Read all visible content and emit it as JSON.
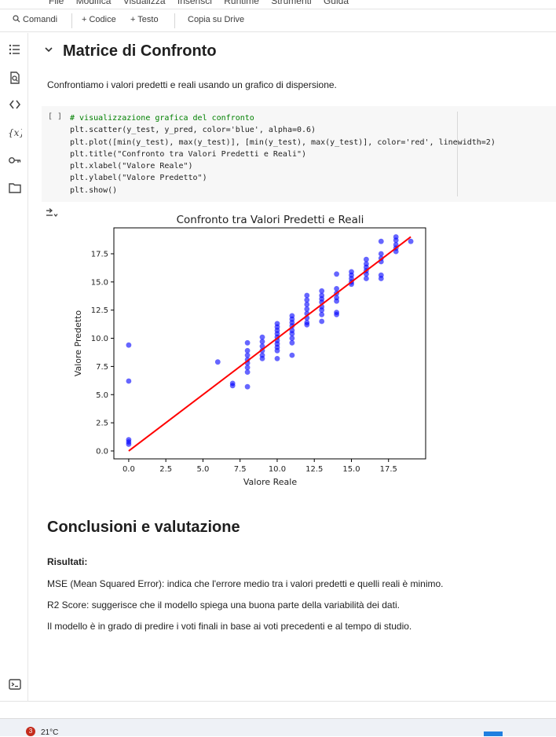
{
  "menu": {
    "items": [
      "File",
      "Modifica",
      "Visualizza",
      "Inserisci",
      "Runtime",
      "Strumenti",
      "Guida"
    ]
  },
  "toolbar": {
    "commands_label": "Comandi",
    "add_code_label": "+ Codice",
    "add_text_label": "+ Testo",
    "copy_drive_label": "Copia su Drive"
  },
  "section": {
    "title": "Matrice di Confronto",
    "intro": "Confrontiamo i valori predetti e reali usando un grafico di dispersione."
  },
  "code_cell": {
    "run_label": "[ ]",
    "lines": [
      "# visualizzazione grafica del confronto",
      "plt.scatter(y_test, y_pred, color='blue', alpha=0.6)",
      "plt.plot([min(y_test), max(y_test)], [min(y_test), max(y_test)], color='red', linewidth=2)",
      "plt.title(\"Confronto tra Valori Predetti e Reali\")",
      "plt.xlabel(\"Valore Reale\")",
      "plt.ylabel(\"Valore Predetto\")",
      "plt.show()"
    ]
  },
  "chart_data": {
    "type": "scatter",
    "title": "Confronto tra Valori Predetti e Reali",
    "xlabel": "Valore Reale",
    "ylabel": "Valore Predetto",
    "xlim": [
      -1,
      20
    ],
    "ylim": [
      -0.7,
      19.8
    ],
    "xticks": [
      0.0,
      2.5,
      5.0,
      7.5,
      10.0,
      12.5,
      15.0,
      17.5
    ],
    "yticks": [
      0.0,
      2.5,
      5.0,
      7.5,
      10.0,
      12.5,
      15.0,
      17.5
    ],
    "tick_labels_x": [
      "0.0",
      "2.5",
      "5.0",
      "7.5",
      "10.0",
      "12.5",
      "15.0",
      "17.5"
    ],
    "tick_labels_y": [
      "0.0",
      "2.5",
      "5.0",
      "7.5",
      "10.0",
      "12.5",
      "15.0",
      "17.5"
    ],
    "grid": false,
    "points_color": "#0000ff",
    "line_color": "#ff0000",
    "line": {
      "x": [
        0,
        19
      ],
      "y": [
        0,
        19
      ]
    },
    "points": [
      [
        0,
        9.4
      ],
      [
        0,
        6.2
      ],
      [
        0,
        1.0
      ],
      [
        0,
        0.8
      ],
      [
        0,
        0.6
      ],
      [
        6,
        7.9
      ],
      [
        7,
        6.0
      ],
      [
        7,
        5.8
      ],
      [
        8,
        9.6
      ],
      [
        8,
        8.9
      ],
      [
        8,
        8.5
      ],
      [
        8,
        8.1
      ],
      [
        8,
        7.8
      ],
      [
        8,
        7.4
      ],
      [
        8,
        7.0
      ],
      [
        8,
        5.7
      ],
      [
        9,
        10.1
      ],
      [
        9,
        9.7
      ],
      [
        9,
        9.3
      ],
      [
        9,
        8.9
      ],
      [
        9,
        8.5
      ],
      [
        9,
        8.2
      ],
      [
        10,
        11.3
      ],
      [
        10,
        11.0
      ],
      [
        10,
        10.7
      ],
      [
        10,
        10.4
      ],
      [
        10,
        10.1
      ],
      [
        10,
        9.8
      ],
      [
        10,
        9.5
      ],
      [
        10,
        9.2
      ],
      [
        10,
        8.9
      ],
      [
        10,
        8.2
      ],
      [
        11,
        12.0
      ],
      [
        11,
        11.7
      ],
      [
        11,
        11.4
      ],
      [
        11,
        11.1
      ],
      [
        11,
        10.7
      ],
      [
        11,
        10.4
      ],
      [
        11,
        10.0
      ],
      [
        11,
        9.6
      ],
      [
        11,
        8.5
      ],
      [
        12,
        13.8
      ],
      [
        12,
        13.4
      ],
      [
        12,
        13.0
      ],
      [
        12,
        12.6
      ],
      [
        12,
        12.2
      ],
      [
        12,
        11.8
      ],
      [
        12,
        11.4
      ],
      [
        12,
        11.2
      ],
      [
        13,
        14.2
      ],
      [
        13,
        13.8
      ],
      [
        13,
        13.5
      ],
      [
        13,
        13.2
      ],
      [
        13,
        12.8
      ],
      [
        13,
        12.5
      ],
      [
        13,
        12.1
      ],
      [
        13,
        11.5
      ],
      [
        14,
        15.7
      ],
      [
        14,
        14.4
      ],
      [
        14,
        14.0
      ],
      [
        14,
        13.6
      ],
      [
        14,
        13.3
      ],
      [
        14,
        12.3
      ],
      [
        14,
        12.1
      ],
      [
        15,
        15.9
      ],
      [
        15,
        15.6
      ],
      [
        15,
        15.3
      ],
      [
        15,
        15.0
      ],
      [
        15,
        14.8
      ],
      [
        16,
        17.0
      ],
      [
        16,
        16.6
      ],
      [
        16,
        16.3
      ],
      [
        16,
        16.0
      ],
      [
        16,
        15.7
      ],
      [
        16,
        15.3
      ],
      [
        17,
        18.6
      ],
      [
        17,
        17.5
      ],
      [
        17,
        17.1
      ],
      [
        17,
        16.8
      ],
      [
        17,
        15.6
      ],
      [
        17,
        15.3
      ],
      [
        18,
        19.0
      ],
      [
        18,
        18.7
      ],
      [
        18,
        18.3
      ],
      [
        18,
        18.0
      ],
      [
        18,
        17.7
      ],
      [
        19,
        18.6
      ]
    ]
  },
  "conclusions": {
    "title": "Conclusioni e valutazione",
    "results_label": "Risultati:",
    "mse": "MSE (Mean Squared Error): indica che l'errore medio tra i valori predetti e quelli reali è minimo.",
    "r2": "R2 Score: suggerisce che il modello spiega una buona parte della variabilità dei dati.",
    "summary": "Il modello è in grado di predire i voti finali in base ai voti precedenti e al tempo di studio."
  },
  "taskbar": {
    "weather_badge": "3",
    "temperature": "21°C"
  }
}
